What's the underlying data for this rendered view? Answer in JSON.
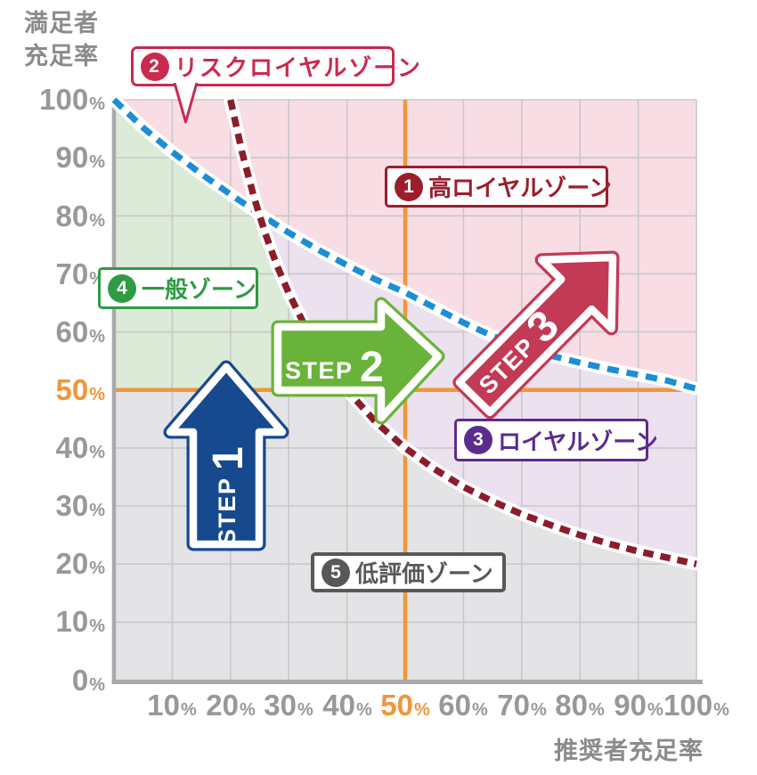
{
  "axis_titles": {
    "y_line1": "満足者",
    "y_line2": "充足率",
    "x": "推奨者充足率"
  },
  "chart_data": {
    "type": "area",
    "subtype": "loyalty-zone-map",
    "xlabel": "推奨者充足率",
    "ylabel": "満足者充足率",
    "xlim": [
      0,
      100
    ],
    "ylim": [
      0,
      100
    ],
    "grid": true,
    "pct_symbol": "%",
    "y_ticks": [
      "100",
      "90",
      "80",
      "70",
      "60",
      "50",
      "40",
      "30",
      "20",
      "10",
      "0"
    ],
    "x_ticks": [
      "10",
      "20",
      "30",
      "40",
      "50",
      "60",
      "70",
      "80",
      "90",
      "100"
    ],
    "x_gridlines": [
      0,
      10,
      20,
      30,
      40,
      50,
      60,
      70,
      80,
      90,
      100
    ],
    "y_gridlines": [
      0,
      10,
      20,
      30,
      40,
      50,
      60,
      70,
      80,
      90,
      100
    ],
    "highlighted_tick": "50",
    "crosshair": {
      "x": 50,
      "y": 50,
      "color": "#f0963c"
    },
    "axis_color": "#a9a9ac",
    "grid_color": "#c8c8ca",
    "tick_color": "#98989b",
    "series": [
      {
        "name": "blue-dashed-boundary",
        "type": "line",
        "style": "dashed",
        "color": "#1c8ed6",
        "outline": "#ffffff",
        "points": [
          [
            0,
            100
          ],
          [
            5,
            95.2
          ],
          [
            10,
            91
          ],
          [
            15,
            87.2
          ],
          [
            20,
            83.7
          ],
          [
            25,
            80.3
          ],
          [
            30,
            77.1
          ],
          [
            35,
            74.2
          ],
          [
            40,
            71.5
          ],
          [
            45,
            69
          ],
          [
            50,
            66.8
          ],
          [
            55,
            64.2
          ],
          [
            60,
            61.6
          ],
          [
            65,
            59.3
          ],
          [
            70,
            57.4
          ],
          [
            75,
            55.9
          ],
          [
            80,
            54.7
          ],
          [
            85,
            53.6
          ],
          [
            90,
            52.6
          ],
          [
            95,
            51.6
          ],
          [
            100,
            50.2
          ]
        ]
      },
      {
        "name": "red-dashed-boundary",
        "type": "line",
        "style": "dashed",
        "color": "#8c1c2b",
        "outline": "#ffffff",
        "note": "hyperbola x*y=2000",
        "points": [
          [
            20,
            100
          ],
          [
            22,
            90.9
          ],
          [
            24,
            83.3
          ],
          [
            26,
            76.9
          ],
          [
            28,
            71.4
          ],
          [
            30,
            66.7
          ],
          [
            33,
            60.6
          ],
          [
            36,
            55.6
          ],
          [
            40,
            50
          ],
          [
            45,
            44.4
          ],
          [
            50,
            40
          ],
          [
            55,
            36.4
          ],
          [
            60,
            33.3
          ],
          [
            65,
            30.8
          ],
          [
            70,
            28.6
          ],
          [
            75,
            26.7
          ],
          [
            80,
            25
          ],
          [
            85,
            23.5
          ],
          [
            90,
            22.2
          ],
          [
            95,
            21.1
          ],
          [
            100,
            20
          ]
        ]
      }
    ],
    "crossing": [
      25,
      80.3
    ],
    "zones": [
      {
        "num": "1",
        "name": "高ロイヤルゾーン",
        "fill": "#f9dde4",
        "label_color": "#9b1e2d",
        "region": "above blue boundary, right of red boundary"
      },
      {
        "num": "2",
        "name": "リスクロイヤルゾーン",
        "fill": "#f9dde4",
        "label_color": "#c92a4e",
        "region": "above blue boundary, left of red boundary"
      },
      {
        "num": "3",
        "name": "ロイヤルゾーン",
        "fill": "#ece1ee",
        "label_color": "#5b2b8e",
        "region": "between blue and red boundaries"
      },
      {
        "num": "4",
        "name": "一般ゾーン",
        "fill": "#dcead8",
        "label_color": "#2f9b43",
        "region": "below blue boundary, left of red boundary, above 50% line"
      },
      {
        "num": "5",
        "name": "低評価ゾーン",
        "fill": "#e4e4e6",
        "label_color": "#57585a",
        "region": "below red boundary / below 50% line"
      }
    ],
    "steps": [
      {
        "word": "STEP",
        "num": "1",
        "color": "#17498e",
        "direction": "up"
      },
      {
        "word": "STEP",
        "num": "2",
        "color": "#6ab33a",
        "direction": "right"
      },
      {
        "word": "STEP",
        "num": "3",
        "color": "#c23a56",
        "direction": "up-right"
      }
    ]
  }
}
